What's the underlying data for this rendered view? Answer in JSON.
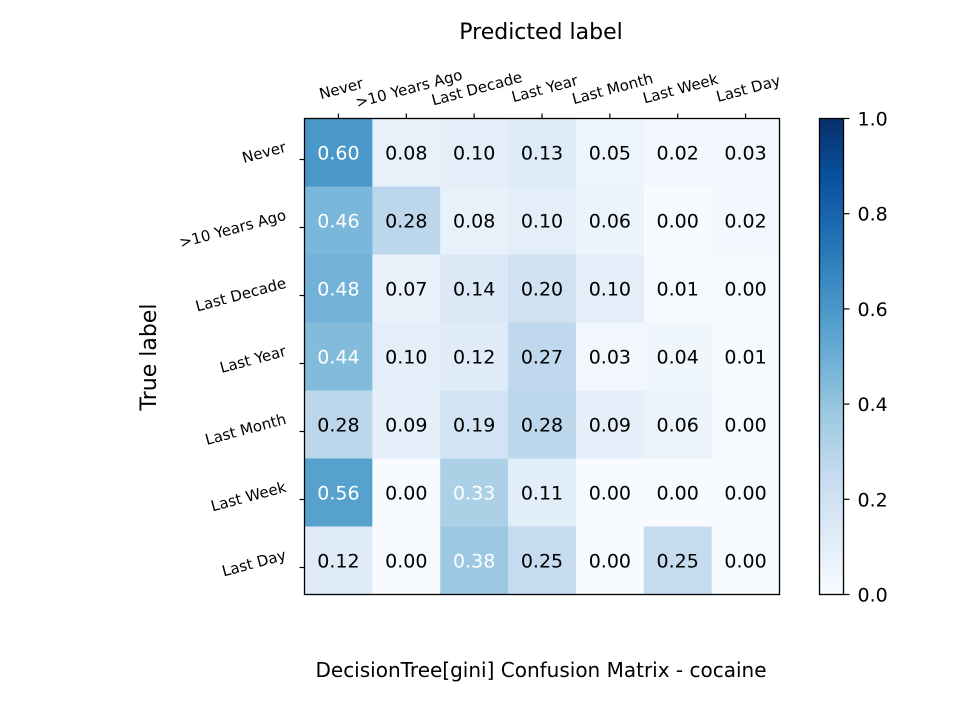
{
  "chart_data": {
    "type": "heatmap",
    "title": "DecisionTree[gini]  Confusion Matrix - cocaine",
    "xlabel": "Predicted label",
    "ylabel": "True label",
    "x_categories": [
      "Never",
      ">10 Years Ago",
      "Last Decade",
      "Last Year",
      "Last Month",
      "Last Week",
      "Last Day"
    ],
    "y_categories": [
      "Never",
      ">10 Years Ago",
      "Last Decade",
      "Last Year",
      "Last Month",
      "Last Week",
      "Last Day"
    ],
    "values": [
      [
        0.6,
        0.08,
        0.1,
        0.13,
        0.05,
        0.02,
        0.03
      ],
      [
        0.46,
        0.28,
        0.08,
        0.1,
        0.06,
        0.0,
        0.02
      ],
      [
        0.48,
        0.07,
        0.14,
        0.2,
        0.1,
        0.01,
        0.0
      ],
      [
        0.44,
        0.1,
        0.12,
        0.27,
        0.03,
        0.04,
        0.01
      ],
      [
        0.28,
        0.09,
        0.19,
        0.28,
        0.09,
        0.06,
        0.0
      ],
      [
        0.56,
        0.0,
        0.33,
        0.11,
        0.0,
        0.0,
        0.0
      ],
      [
        0.12,
        0.0,
        0.38,
        0.25,
        0.0,
        0.25,
        0.0
      ]
    ],
    "colormap": "Blues",
    "colorbar": {
      "range": [
        0.0,
        1.0
      ],
      "ticks": [
        "0.0",
        "0.2",
        "0.4",
        "0.6",
        "0.8",
        "1.0"
      ]
    },
    "text_color_dark": "#000000",
    "text_color_light": "#ffffff",
    "grid": false
  }
}
